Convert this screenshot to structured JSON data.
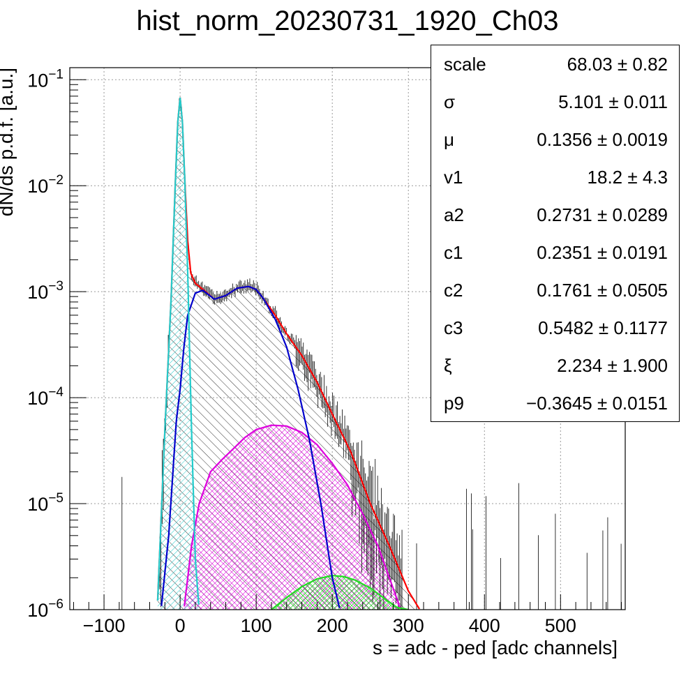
{
  "chart_data": {
    "type": "line",
    "title": "hist_norm_20230731_1920_Ch03",
    "xlabel": "s = adc - ped [adc channels]",
    "ylabel": "dN/ds p.d.f. [a.u.]",
    "xlim": [
      -145,
      585
    ],
    "ylim": [
      1e-06,
      0.13
    ],
    "y_scale": "log",
    "grid": true,
    "x_ticks": [
      {
        "value": -100,
        "label": "−100"
      },
      {
        "value": 0,
        "label": "0"
      },
      {
        "value": 100,
        "label": "100"
      },
      {
        "value": 200,
        "label": "200"
      },
      {
        "value": 300,
        "label": "300"
      },
      {
        "value": 400,
        "label": "400"
      },
      {
        "value": 500,
        "label": "500"
      }
    ],
    "y_ticks": [
      {
        "value": 0.1,
        "base": "10",
        "exp": "−1"
      },
      {
        "value": 0.01,
        "base": "10",
        "exp": "−2"
      },
      {
        "value": 0.001,
        "base": "10",
        "exp": "−3"
      },
      {
        "value": 0.0001,
        "base": "10",
        "exp": "−4"
      },
      {
        "value": 1e-05,
        "base": "10",
        "exp": "−5"
      },
      {
        "value": 1e-06,
        "base": "10",
        "exp": "−6"
      }
    ],
    "series": [
      {
        "color": "#ff0000",
        "x": [
          -30,
          -20,
          -12,
          -6,
          -3,
          0,
          3,
          6,
          10,
          14,
          20,
          30,
          45,
          60,
          75,
          90,
          100,
          110,
          125,
          140,
          160,
          180,
          200,
          225,
          250,
          275,
          300,
          315
        ],
        "y": [
          1e-06,
          5e-05,
          0.0008,
          0.012,
          0.04,
          0.068,
          0.04,
          0.012,
          0.003,
          0.0015,
          0.0012,
          0.00105,
          0.00085,
          0.00092,
          0.00108,
          0.00112,
          0.00105,
          0.00085,
          0.0006,
          0.0004,
          0.00025,
          0.00014,
          7e-05,
          3e-05,
          1e-05,
          4e-06,
          1.5e-06,
          1e-06
        ]
      },
      {
        "color": "#0000cc",
        "x": [
          -25,
          -15,
          -5,
          0,
          5,
          10,
          20,
          30,
          45,
          60,
          75,
          90,
          100,
          110,
          125,
          140,
          155,
          170,
          185,
          200,
          210
        ],
        "y": [
          1e-06,
          5e-06,
          6e-05,
          0.00012,
          0.0003,
          0.0006,
          0.00097,
          0.00103,
          0.00085,
          0.00092,
          0.00108,
          0.00112,
          0.00105,
          0.00085,
          0.00055,
          0.0003,
          0.00012,
          4e-05,
          1e-05,
          2e-06,
          1e-06
        ]
      },
      {
        "color": "#22cccc",
        "x": [
          -30,
          -20,
          -12,
          -6,
          -3,
          0,
          3,
          6,
          10,
          15,
          20,
          25
        ],
        "y": [
          1e-06,
          5e-05,
          0.0008,
          0.012,
          0.04,
          0.068,
          0.04,
          0.012,
          0.0015,
          5e-05,
          3e-06,
          1e-06
        ]
      },
      {
        "color": "#dd00dd",
        "x": [
          5,
          15,
          25,
          40,
          55,
          70,
          85,
          100,
          120,
          140,
          160,
          180,
          200,
          220,
          240,
          260,
          275,
          290
        ],
        "y": [
          1e-06,
          4e-06,
          1e-05,
          2e-05,
          2.6e-05,
          3.3e-05,
          4.2e-05,
          5e-05,
          5.5e-05,
          5.4e-05,
          4.7e-05,
          3.6e-05,
          2.4e-05,
          1.5e-05,
          8e-06,
          4e-06,
          2e-06,
          1e-06
        ]
      },
      {
        "color": "#22dd22",
        "x": [
          120,
          140,
          160,
          180,
          200,
          215,
          230,
          250,
          270,
          285,
          300
        ],
        "y": [
          1e-06,
          1.3e-06,
          1.65e-06,
          1.95e-06,
          2.1e-06,
          2.05e-06,
          1.9e-06,
          1.6e-06,
          1.25e-06,
          1.05e-06,
          1e-06
        ]
      }
    ]
  },
  "stats_box": [
    {
      "name": "scale",
      "value": "68.03 ± 0.82"
    },
    {
      "name": "σ",
      "value": "5.101 ± 0.011"
    },
    {
      "name": "μ",
      "value": "0.1356 ± 0.0019"
    },
    {
      "name": "v1",
      "value": "18.2 ± 4.3"
    },
    {
      "name": "a2",
      "value": "0.2731 ± 0.0289"
    },
    {
      "name": "c1",
      "value": "0.2351 ± 0.0191"
    },
    {
      "name": "c2",
      "value": "0.1761 ± 0.0505"
    },
    {
      "name": "c3",
      "value": "0.5482 ± 0.1177"
    },
    {
      "name": "ξ",
      "value": "2.234 ± 1.900"
    },
    {
      "name": "p9",
      "value": "−0.3645 ± 0.0151"
    }
  ]
}
